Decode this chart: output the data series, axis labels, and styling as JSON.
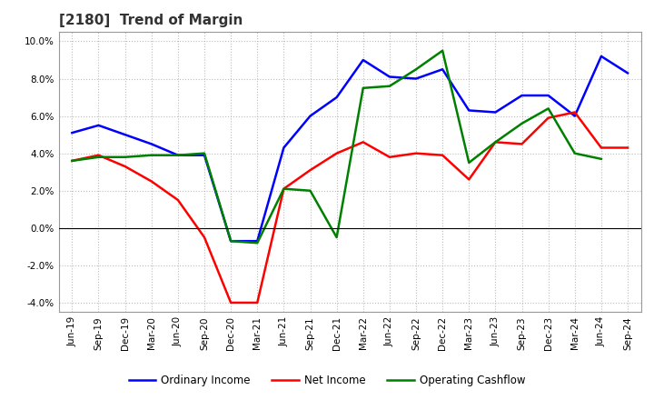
{
  "title": "[2180]  Trend of Margin",
  "x_labels": [
    "Jun-19",
    "Sep-19",
    "Dec-19",
    "Mar-20",
    "Jun-20",
    "Sep-20",
    "Dec-20",
    "Mar-21",
    "Jun-21",
    "Sep-21",
    "Dec-21",
    "Mar-22",
    "Jun-22",
    "Sep-22",
    "Dec-22",
    "Mar-23",
    "Jun-23",
    "Sep-23",
    "Dec-23",
    "Mar-24",
    "Jun-24",
    "Sep-24"
  ],
  "ordinary_income": [
    5.1,
    5.5,
    5.0,
    4.5,
    3.9,
    3.9,
    -0.7,
    -0.7,
    4.3,
    6.0,
    7.0,
    9.0,
    8.1,
    8.0,
    8.5,
    6.3,
    6.2,
    7.1,
    7.1,
    6.0,
    9.2,
    8.3
  ],
  "net_income": [
    3.6,
    3.9,
    3.3,
    2.5,
    1.5,
    -0.5,
    -4.0,
    -4.0,
    2.1,
    3.1,
    4.0,
    4.6,
    3.8,
    4.0,
    3.9,
    2.6,
    4.6,
    4.5,
    5.9,
    6.2,
    4.3,
    4.3
  ],
  "operating_cashflow": [
    3.6,
    3.8,
    3.8,
    3.9,
    3.9,
    4.0,
    -0.7,
    -0.8,
    2.1,
    2.0,
    -0.5,
    7.5,
    7.6,
    8.5,
    9.5,
    3.5,
    4.6,
    5.6,
    6.4,
    4.0,
    3.7,
    null
  ],
  "ylim": [
    -4.5,
    10.5
  ],
  "yticks": [
    -4.0,
    -2.0,
    0.0,
    2.0,
    4.0,
    6.0,
    8.0,
    10.0
  ],
  "line_colors": {
    "ordinary_income": "#0000ff",
    "net_income": "#ff0000",
    "operating_cashflow": "#008000"
  },
  "line_width": 1.8,
  "legend_labels": [
    "Ordinary Income",
    "Net Income",
    "Operating Cashflow"
  ],
  "background_color": "#ffffff",
  "plot_bg_color": "#ffffff",
  "grid_color": "#bbbbbb",
  "title_fontsize": 11,
  "tick_fontsize": 7.5,
  "legend_fontsize": 8.5
}
